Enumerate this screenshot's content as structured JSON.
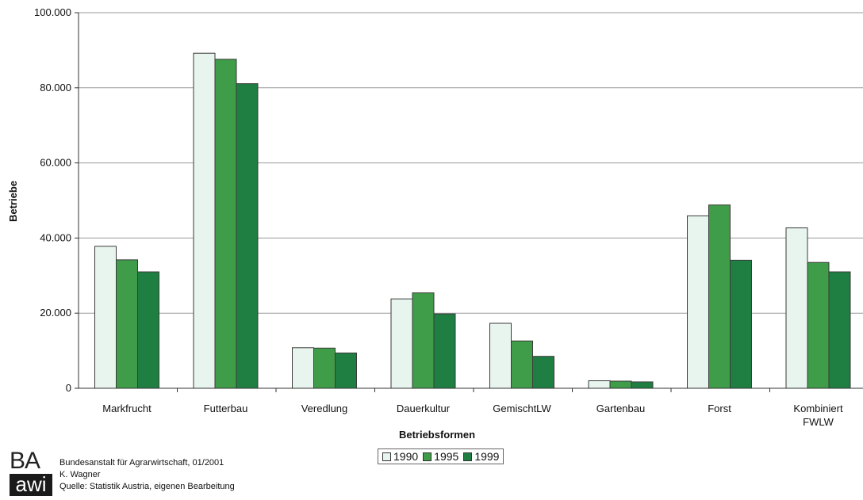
{
  "chart_data": {
    "type": "bar",
    "xlabel": "Betriebsformen",
    "ylabel": "Betriebe",
    "ylim": [
      0,
      100000
    ],
    "yticks": [
      0,
      20000,
      40000,
      60000,
      80000,
      100000
    ],
    "ytick_labels": [
      "0",
      "20.000",
      "40.000",
      "60.000",
      "80.000",
      "100.000"
    ],
    "grid": true,
    "legend_position": "bottom",
    "categories": [
      [
        "Markfrucht"
      ],
      [
        "Futterbau"
      ],
      [
        "Veredlung"
      ],
      [
        "Dauerkultur"
      ],
      [
        "GemischtLW"
      ],
      [
        "Gartenbau"
      ],
      [
        "Forst"
      ],
      [
        "Kombiniert",
        "FWLW"
      ]
    ],
    "series": [
      {
        "name": "1990",
        "color": "#e8f5ee",
        "values": [
          37800,
          89200,
          10800,
          23800,
          17300,
          2000,
          45900,
          42700
        ]
      },
      {
        "name": "1995",
        "color": "#3f9c48",
        "values": [
          34200,
          87600,
          10700,
          25400,
          12600,
          1900,
          48800,
          33500
        ]
      },
      {
        "name": "1999",
        "color": "#1f7f43",
        "values": [
          31000,
          81100,
          9400,
          19800,
          8500,
          1700,
          34100,
          31000
        ]
      }
    ]
  },
  "footer": {
    "logo_top": "BA",
    "logo_bottom": "awi",
    "lines": [
      "Bundesanstalt für Agrarwirtschaft, 01/2001",
      "K. Wagner",
      "Quelle: Statistik Austria, eigenen Bearbeitung"
    ]
  }
}
